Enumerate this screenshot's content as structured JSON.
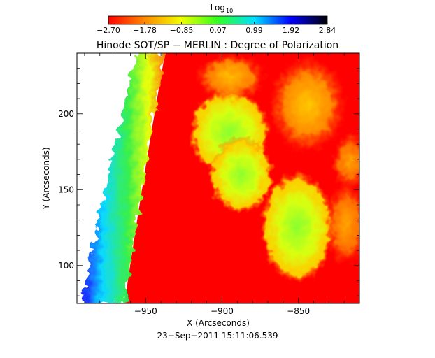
{
  "colorbar": {
    "label": "Log",
    "label_sub": "10",
    "ticks": [
      "−2.70",
      "−1.78",
      "−0.85",
      "0.07",
      "0.99",
      "1.92",
      "2.84"
    ],
    "tick_values": [
      -2.7,
      -1.78,
      -0.85,
      0.07,
      0.99,
      1.92,
      2.84
    ],
    "colors": [
      "#ff0000",
      "#ff8a00",
      "#f0ff00",
      "#30ff20",
      "#00e0ff",
      "#0000ff",
      "#000000"
    ]
  },
  "chart_data": {
    "type": "heatmap",
    "title": "Hinode SOT/SP − MERLIN : Degree of Polarization",
    "xlabel": "X (Arcseconds)",
    "ylabel": "Y (Arcseconds)",
    "xlim": [
      -995,
      -810
    ],
    "ylim": [
      75,
      240
    ],
    "x_ticks": [
      -950,
      -900,
      -850
    ],
    "x_tick_labels": [
      "−950",
      "−900",
      "−850"
    ],
    "y_ticks": [
      100,
      150,
      200
    ],
    "y_tick_labels": [
      "100",
      "150",
      "200"
    ],
    "zlabel": "Log10 degree of polarization",
    "zlim": [
      -2.7,
      2.84
    ],
    "background_level": -2.7,
    "features": [
      {
        "kind": "limb-band",
        "note": "band of elevated values along the solar limb, green/blue toward the edge"
      },
      {
        "kind": "region",
        "x": -895,
        "y": 190,
        "level": 0.0
      },
      {
        "kind": "region",
        "x": -888,
        "y": 160,
        "level": -0.2
      },
      {
        "kind": "region",
        "x": -852,
        "y": 128,
        "level": 0.1
      },
      {
        "kind": "region",
        "x": -835,
        "y": 205,
        "level": -0.9
      }
    ]
  },
  "footer": {
    "date": "23−Sep−2011 15:11:06.539"
  }
}
